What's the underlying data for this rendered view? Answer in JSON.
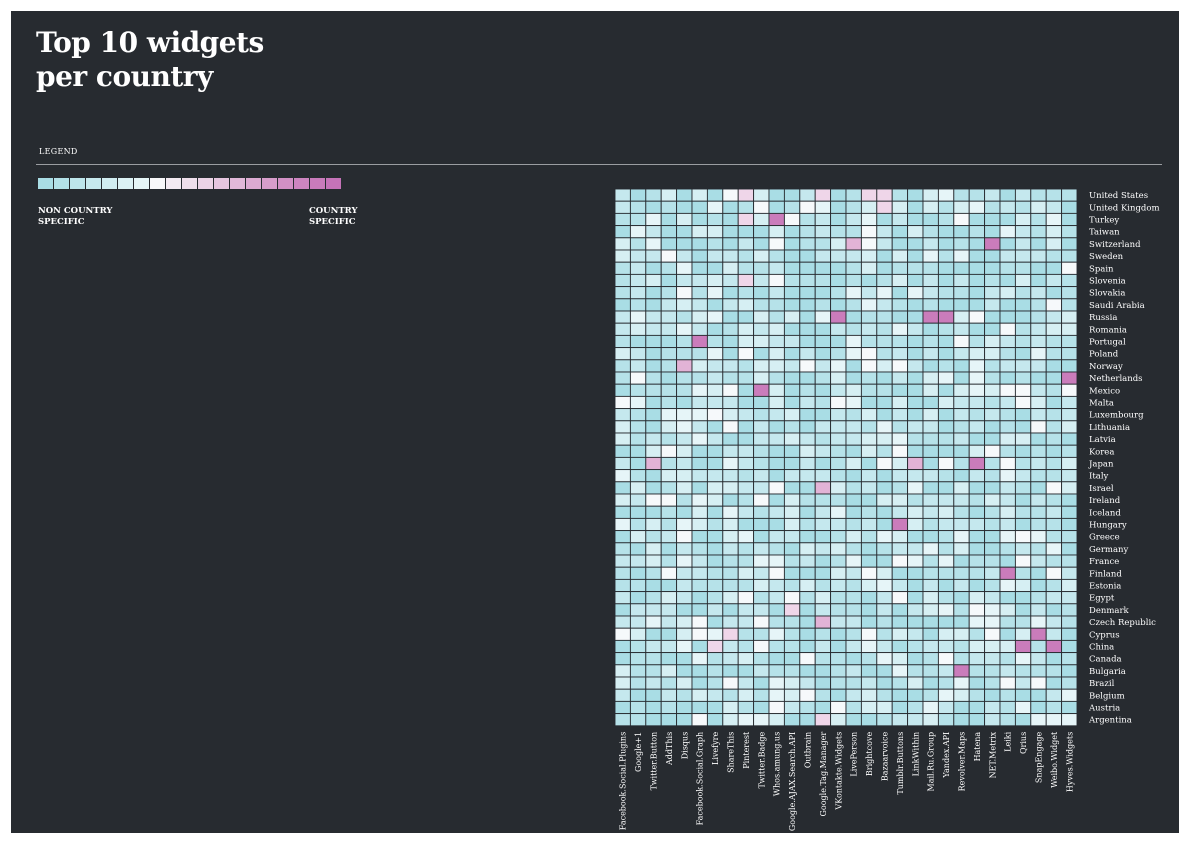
{
  "header": {
    "title_line1": "Top 10 widgets",
    "title_line2": "per country"
  },
  "legend": {
    "title": "LEGEND",
    "low_line1": "NON COUNTRY",
    "low_line2": "SPECIFIC",
    "high_line1": "COUNTRY",
    "high_line2": "SPECIFIC",
    "colors": [
      "#a9dde5",
      "#b3e1e8",
      "#bde5eb",
      "#c7e9ee",
      "#d1edf1",
      "#dbf1f4",
      "#e5f5f7",
      "#f7f7f9",
      "#f3eaf2",
      "#efdfec",
      "#ebd3e6",
      "#e6c6e0",
      "#e1b8d9",
      "#dcaad2",
      "#d79dcb",
      "#d290c5",
      "#cd85c0",
      "#c97bbb",
      "#c573b8"
    ]
  },
  "chart_data": {
    "type": "heatmap",
    "title": "Top 10 widgets per country",
    "value_scale": "0 = non country specific, 4 = country specific",
    "x_categories": [
      "Facebook.Social.Plugins",
      "Google+1",
      "Twitter.Button",
      "AddThis",
      "Disqus",
      "Facebook.Social.Graph",
      "Livefyre",
      "ShareThis",
      "Pinterest",
      "Twitter.Badge",
      "Whos.amung.us",
      "Google.AJAX.Search.API",
      "Outbrain",
      "Google.Tag.Manager",
      "VKontakte.Widgets",
      "LivePerson",
      "Brightcove",
      "Bazaarvoice",
      "Tumblr.Buttons",
      "LinkWithin",
      "Mail.Ru.Group",
      "Yandex.API",
      "Revolver.Maps",
      "Hatena",
      "NET.Metrix",
      "Leiki",
      "Qrius",
      "SnapEngage",
      "Weibo.Widget",
      "Hyves.Widgets"
    ],
    "y_categories": [
      "United States",
      "United Kingdom",
      "Turkey",
      "Taiwan",
      "Switzerland",
      "Sweden",
      "Spain",
      "Slovenia",
      "Slovakia",
      "Saudi Arabia",
      "Russia",
      "Romania",
      "Portugal",
      "Poland",
      "Norway",
      "Netherlands",
      "Mexico",
      "Malta",
      "Luxembourg",
      "Lithuania",
      "Latvia",
      "Korea",
      "Japan",
      "Italy",
      "Israel",
      "Ireland",
      "Iceland",
      "Hungary",
      "Greece",
      "Germany",
      "France",
      "Finland",
      "Estonia",
      "Egypt",
      "Denmark",
      "Czech Republic",
      "Cyprus",
      "China",
      "Canada",
      "Bulgaria",
      "Brazil",
      "Belgium",
      "Austria",
      "Argentina"
    ],
    "highlights": [
      {
        "row": "United States",
        "col": "Pinterest",
        "value": 2
      },
      {
        "row": "United States",
        "col": "Google.Tag.Manager",
        "value": 2
      },
      {
        "row": "United States",
        "col": "Brightcove",
        "value": 2
      },
      {
        "row": "United States",
        "col": "Bazaarvoice",
        "value": 2
      },
      {
        "row": "United Kingdom",
        "col": "Bazaarvoice",
        "value": 2
      },
      {
        "row": "Turkey",
        "col": "Pinterest",
        "value": 2
      },
      {
        "row": "Turkey",
        "col": "Whos.amung.us",
        "value": 4
      },
      {
        "row": "Switzerland",
        "col": "LivePerson",
        "value": 3
      },
      {
        "row": "Switzerland",
        "col": "NET.Metrix",
        "value": 4
      },
      {
        "row": "Slovenia",
        "col": "Pinterest",
        "value": 2
      },
      {
        "row": "Russia",
        "col": "VKontakte.Widgets",
        "value": 4
      },
      {
        "row": "Russia",
        "col": "Mail.Ru.Group",
        "value": 4
      },
      {
        "row": "Russia",
        "col": "Yandex.API",
        "value": 4
      },
      {
        "row": "Portugal",
        "col": "Facebook.Social.Graph",
        "value": 4
      },
      {
        "row": "Norway",
        "col": "Disqus",
        "value": 3
      },
      {
        "row": "Netherlands",
        "col": "Hyves.Widgets",
        "value": 4
      },
      {
        "row": "Mexico",
        "col": "Twitter.Badge",
        "value": 4
      },
      {
        "row": "Japan",
        "col": "Twitter.Button",
        "value": 3
      },
      {
        "row": "Japan",
        "col": "LinkWithin",
        "value": 3
      },
      {
        "row": "Japan",
        "col": "Hatena",
        "value": 4
      },
      {
        "row": "Israel",
        "col": "Google.Tag.Manager",
        "value": 3
      },
      {
        "row": "Hungary",
        "col": "Tumblr.Buttons",
        "value": 4
      },
      {
        "row": "Finland",
        "col": "Leiki",
        "value": 4
      },
      {
        "row": "Denmark",
        "col": "Google.AJAX.Search.API",
        "value": 2
      },
      {
        "row": "Czech Republic",
        "col": "Google.Tag.Manager",
        "value": 3
      },
      {
        "row": "Cyprus",
        "col": "ShareThis",
        "value": 2
      },
      {
        "row": "Cyprus",
        "col": "SnapEngage",
        "value": 4
      },
      {
        "row": "China",
        "col": "Livefyre",
        "value": 2
      },
      {
        "row": "China",
        "col": "Qrius",
        "value": 4
      },
      {
        "row": "China",
        "col": "Weibo.Widget",
        "value": 4
      },
      {
        "row": "Bulgaria",
        "col": "Revolver.Maps",
        "value": 4
      },
      {
        "row": "Argentina",
        "col": "Google.Tag.Manager",
        "value": 2
      }
    ]
  }
}
